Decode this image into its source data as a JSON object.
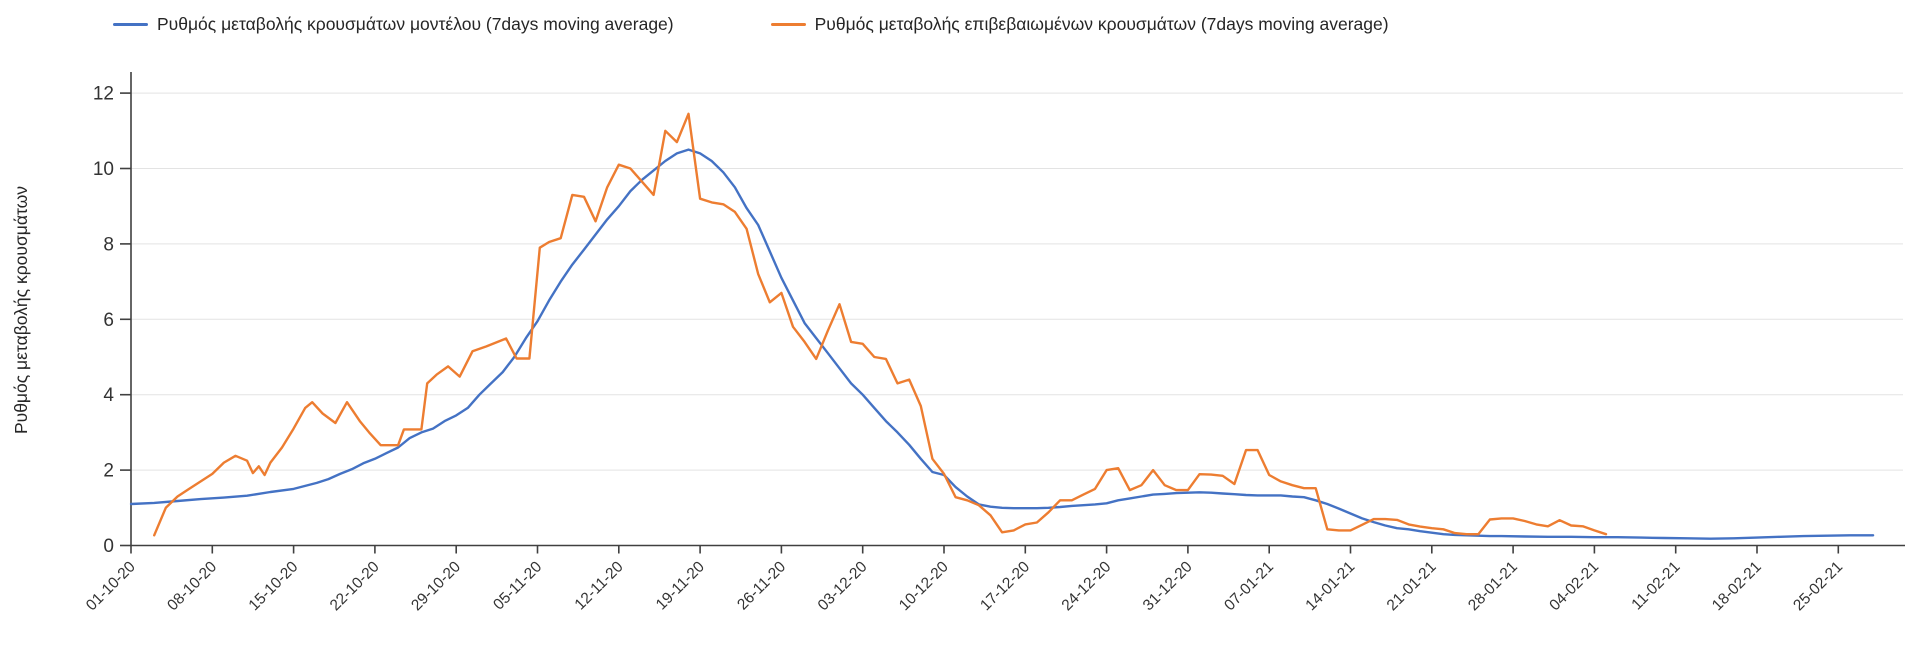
{
  "page": {
    "background": "#ffffff"
  },
  "legend": {
    "items": [
      {
        "label": "Ρυθμός μεταβολής κρουσμάτων μοντέλου (7days moving average)",
        "color": "#4472c4"
      },
      {
        "label": "Ρυθμός μεταβολής επιβεβαιωμένων κρουσμάτων (7days moving average)",
        "color": "#ed7d31"
      }
    ]
  },
  "chart_data": {
    "type": "line",
    "title": "",
    "xlabel": "",
    "ylabel": "Ρυθμός μεταβολής κρουσμάτων",
    "ylim": [
      0,
      12
    ],
    "y_ticks": [
      0,
      2,
      4,
      6,
      8,
      10,
      12
    ],
    "grid": "horizontal",
    "legend_position": "top",
    "x_unit": "days since 01-10-2020, ticks weekly",
    "x_tick_labels": [
      "01-10-20",
      "08-10-20",
      "15-10-20",
      "22-10-20",
      "29-10-20",
      "05-11-20",
      "12-11-20",
      "19-11-20",
      "26-11-20",
      "03-12-20",
      "10-12-20",
      "17-12-20",
      "24-12-20",
      "31-12-20",
      "07-01-21",
      "14-01-21",
      "21-01-21",
      "28-01-21",
      "04-02-21",
      "11-02-21",
      "18-02-21",
      "25-02-21"
    ],
    "series": [
      {
        "name": "Ρυθμός μεταβολής κρουσμάτων μοντέλου (7days moving average)",
        "color": "#4472c4",
        "points": [
          [
            0,
            1.1
          ],
          [
            2,
            1.13
          ],
          [
            4,
            1.18
          ],
          [
            6,
            1.23
          ],
          [
            8,
            1.27
          ],
          [
            10,
            1.32
          ],
          [
            12,
            1.42
          ],
          [
            14,
            1.5
          ],
          [
            15,
            1.58
          ],
          [
            16,
            1.66
          ],
          [
            17,
            1.76
          ],
          [
            18,
            1.9
          ],
          [
            19,
            2.02
          ],
          [
            20,
            2.18
          ],
          [
            21,
            2.3
          ],
          [
            22,
            2.45
          ],
          [
            23,
            2.6
          ],
          [
            24,
            2.85
          ],
          [
            25,
            3.0
          ],
          [
            26,
            3.1
          ],
          [
            27,
            3.3
          ],
          [
            28,
            3.45
          ],
          [
            29,
            3.65
          ],
          [
            30,
            4.0
          ],
          [
            31,
            4.3
          ],
          [
            32,
            4.6
          ],
          [
            33,
            5.0
          ],
          [
            34,
            5.5
          ],
          [
            35,
            5.95
          ],
          [
            36,
            6.5
          ],
          [
            37,
            7.0
          ],
          [
            38,
            7.45
          ],
          [
            39,
            7.85
          ],
          [
            40,
            8.25
          ],
          [
            41,
            8.65
          ],
          [
            42,
            9.0
          ],
          [
            43,
            9.4
          ],
          [
            44,
            9.7
          ],
          [
            45,
            9.95
          ],
          [
            46,
            10.2
          ],
          [
            47,
            10.4
          ],
          [
            48,
            10.5
          ],
          [
            49,
            10.4
          ],
          [
            50,
            10.2
          ],
          [
            51,
            9.9
          ],
          [
            52,
            9.5
          ],
          [
            53,
            8.95
          ],
          [
            54,
            8.5
          ],
          [
            55,
            7.8
          ],
          [
            56,
            7.1
          ],
          [
            57,
            6.5
          ],
          [
            58,
            5.9
          ],
          [
            59,
            5.5
          ],
          [
            60,
            5.1
          ],
          [
            61,
            4.7
          ],
          [
            62,
            4.3
          ],
          [
            63,
            4.0
          ],
          [
            64,
            3.65
          ],
          [
            65,
            3.3
          ],
          [
            66,
            3.0
          ],
          [
            67,
            2.67
          ],
          [
            68,
            2.3
          ],
          [
            69,
            1.95
          ],
          [
            70,
            1.87
          ],
          [
            71,
            1.55
          ],
          [
            72,
            1.3
          ],
          [
            73,
            1.09
          ],
          [
            74,
            1.03
          ],
          [
            75,
            1.0
          ],
          [
            76,
            0.99
          ],
          [
            77,
            0.99
          ],
          [
            78,
            0.99
          ],
          [
            79,
            1.0
          ],
          [
            80,
            1.02
          ],
          [
            81,
            1.05
          ],
          [
            82,
            1.07
          ],
          [
            83,
            1.09
          ],
          [
            84,
            1.12
          ],
          [
            85,
            1.2
          ],
          [
            86,
            1.25
          ],
          [
            87,
            1.3
          ],
          [
            88,
            1.35
          ],
          [
            89,
            1.37
          ],
          [
            90,
            1.39
          ],
          [
            91,
            1.4
          ],
          [
            92,
            1.41
          ],
          [
            93,
            1.4
          ],
          [
            94,
            1.38
          ],
          [
            95,
            1.36
          ],
          [
            96,
            1.34
          ],
          [
            97,
            1.33
          ],
          [
            98,
            1.33
          ],
          [
            99,
            1.33
          ],
          [
            100,
            1.3
          ],
          [
            101,
            1.28
          ],
          [
            102,
            1.2
          ],
          [
            103,
            1.1
          ],
          [
            104,
            0.98
          ],
          [
            105,
            0.85
          ],
          [
            106,
            0.72
          ],
          [
            107,
            0.62
          ],
          [
            108,
            0.53
          ],
          [
            109,
            0.46
          ],
          [
            110,
            0.43
          ],
          [
            111,
            0.38
          ],
          [
            112,
            0.34
          ],
          [
            113,
            0.3
          ],
          [
            114,
            0.28
          ],
          [
            115,
            0.27
          ],
          [
            116,
            0.26
          ],
          [
            117,
            0.25
          ],
          [
            118,
            0.25
          ],
          [
            120,
            0.24
          ],
          [
            122,
            0.23
          ],
          [
            124,
            0.23
          ],
          [
            126,
            0.22
          ],
          [
            128,
            0.22
          ],
          [
            130,
            0.21
          ],
          [
            132,
            0.2
          ],
          [
            134,
            0.19
          ],
          [
            136,
            0.18
          ],
          [
            138,
            0.19
          ],
          [
            140,
            0.21
          ],
          [
            142,
            0.23
          ],
          [
            144,
            0.25
          ],
          [
            146,
            0.26
          ],
          [
            148,
            0.27
          ],
          [
            150,
            0.27
          ]
        ]
      },
      {
        "name": "Ρυθμός μεταβολής επιβεβαιωμένων κρουσμάτων (7days moving average)",
        "color": "#ed7d31",
        "points": [
          [
            2,
            0.27
          ],
          [
            3,
            1.0
          ],
          [
            4,
            1.3
          ],
          [
            5,
            1.5
          ],
          [
            6,
            1.7
          ],
          [
            7,
            1.9
          ],
          [
            8,
            2.2
          ],
          [
            9,
            2.38
          ],
          [
            10,
            2.25
          ],
          [
            10.5,
            1.92
          ],
          [
            11,
            2.1
          ],
          [
            11.5,
            1.87
          ],
          [
            12,
            2.2
          ],
          [
            13,
            2.6
          ],
          [
            14,
            3.1
          ],
          [
            15,
            3.65
          ],
          [
            15.6,
            3.8
          ],
          [
            16.5,
            3.5
          ],
          [
            17.6,
            3.25
          ],
          [
            18.6,
            3.8
          ],
          [
            19.7,
            3.3
          ],
          [
            20.5,
            3.0
          ],
          [
            21.5,
            2.66
          ],
          [
            23,
            2.66
          ],
          [
            23.5,
            3.08
          ],
          [
            25,
            3.08
          ],
          [
            25.5,
            4.3
          ],
          [
            26.3,
            4.53
          ],
          [
            27.3,
            4.75
          ],
          [
            28.3,
            4.48
          ],
          [
            29.4,
            5.15
          ],
          [
            30.6,
            5.28
          ],
          [
            32.3,
            5.49
          ],
          [
            33.2,
            4.96
          ],
          [
            34.3,
            4.96
          ],
          [
            35.2,
            7.9
          ],
          [
            36,
            8.05
          ],
          [
            37,
            8.15
          ],
          [
            38,
            9.3
          ],
          [
            39,
            9.25
          ],
          [
            40,
            8.6
          ],
          [
            41,
            9.5
          ],
          [
            42,
            10.1
          ],
          [
            43,
            10.0
          ],
          [
            44,
            9.65
          ],
          [
            45,
            9.3
          ],
          [
            46,
            11.0
          ],
          [
            47,
            10.7
          ],
          [
            48,
            11.45
          ],
          [
            49,
            9.2
          ],
          [
            50,
            9.1
          ],
          [
            51,
            9.05
          ],
          [
            52,
            8.85
          ],
          [
            53,
            8.4
          ],
          [
            54,
            7.2
          ],
          [
            55,
            6.45
          ],
          [
            56,
            6.7
          ],
          [
            57,
            5.8
          ],
          [
            58,
            5.4
          ],
          [
            59,
            4.95
          ],
          [
            60,
            5.7
          ],
          [
            61,
            6.4
          ],
          [
            62,
            5.4
          ],
          [
            63,
            5.35
          ],
          [
            64,
            5.0
          ],
          [
            65,
            4.95
          ],
          [
            66,
            4.3
          ],
          [
            67,
            4.4
          ],
          [
            68,
            3.7
          ],
          [
            69,
            2.3
          ],
          [
            70,
            1.9
          ],
          [
            71,
            1.28
          ],
          [
            72,
            1.2
          ],
          [
            73,
            1.07
          ],
          [
            74,
            0.8
          ],
          [
            75,
            0.35
          ],
          [
            76,
            0.4
          ],
          [
            77,
            0.56
          ],
          [
            78,
            0.61
          ],
          [
            79,
            0.88
          ],
          [
            80,
            1.2
          ],
          [
            81,
            1.2
          ],
          [
            82,
            1.35
          ],
          [
            83,
            1.5
          ],
          [
            84,
            2.0
          ],
          [
            85,
            2.05
          ],
          [
            86,
            1.47
          ],
          [
            87,
            1.6
          ],
          [
            88,
            2.0
          ],
          [
            89,
            1.6
          ],
          [
            90,
            1.47
          ],
          [
            91,
            1.47
          ],
          [
            92,
            1.89
          ],
          [
            93,
            1.88
          ],
          [
            94,
            1.85
          ],
          [
            95,
            1.63
          ],
          [
            96,
            2.53
          ],
          [
            97,
            2.53
          ],
          [
            98,
            1.87
          ],
          [
            99,
            1.7
          ],
          [
            100,
            1.6
          ],
          [
            101,
            1.52
          ],
          [
            102,
            1.52
          ],
          [
            103,
            0.43
          ],
          [
            104,
            0.4
          ],
          [
            105,
            0.4
          ],
          [
            106,
            0.55
          ],
          [
            107,
            0.7
          ],
          [
            108,
            0.7
          ],
          [
            109,
            0.68
          ],
          [
            110,
            0.56
          ],
          [
            111,
            0.5
          ],
          [
            112,
            0.46
          ],
          [
            113,
            0.43
          ],
          [
            114,
            0.33
          ],
          [
            115,
            0.3
          ],
          [
            116,
            0.3
          ],
          [
            117,
            0.69
          ],
          [
            118,
            0.72
          ],
          [
            119,
            0.72
          ],
          [
            120,
            0.65
          ],
          [
            121,
            0.56
          ],
          [
            122,
            0.51
          ],
          [
            123,
            0.67
          ],
          [
            124,
            0.53
          ],
          [
            125,
            0.51
          ],
          [
            126,
            0.4
          ],
          [
            127,
            0.3
          ]
        ]
      }
    ]
  }
}
